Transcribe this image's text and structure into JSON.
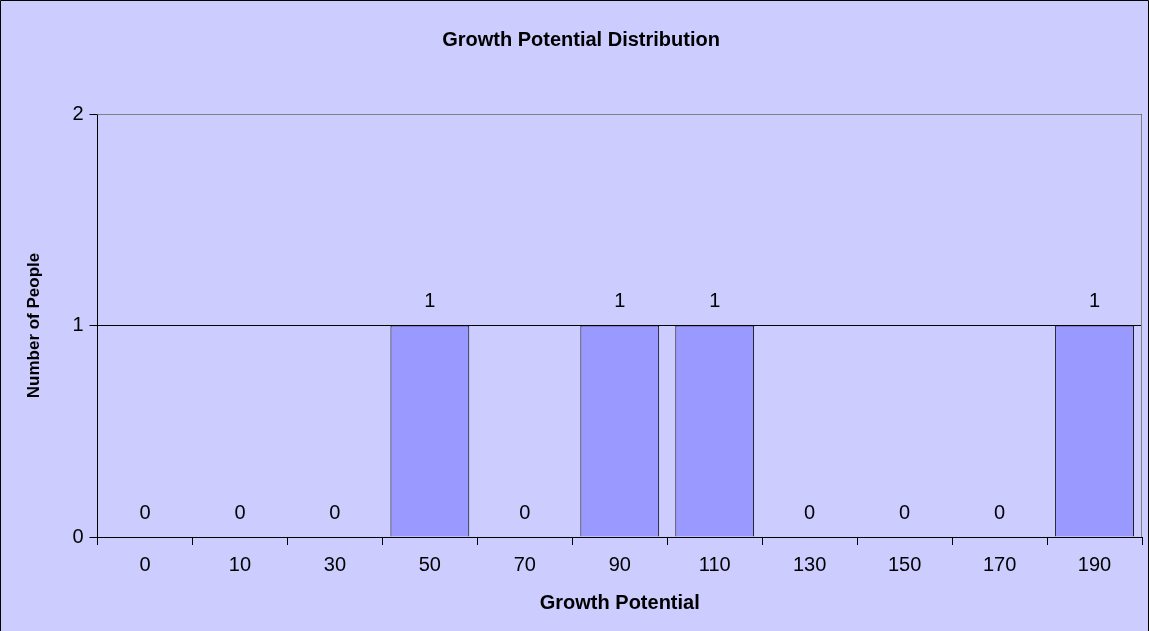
{
  "chart_data": {
    "type": "bar",
    "title": "Growth Potential Distribution",
    "xlabel": "Growth Potential",
    "ylabel": "Number of People",
    "categories": [
      "0",
      "10",
      "30",
      "50",
      "70",
      "90",
      "110",
      "130",
      "150",
      "170",
      "190"
    ],
    "values": [
      0,
      0,
      0,
      1,
      0,
      1,
      1,
      0,
      0,
      0,
      1
    ],
    "color": "#9999ff",
    "ylim": [
      0,
      2
    ],
    "yticks": [
      0,
      1,
      2
    ],
    "grid": "y",
    "legend": false,
    "data_labels": true
  }
}
